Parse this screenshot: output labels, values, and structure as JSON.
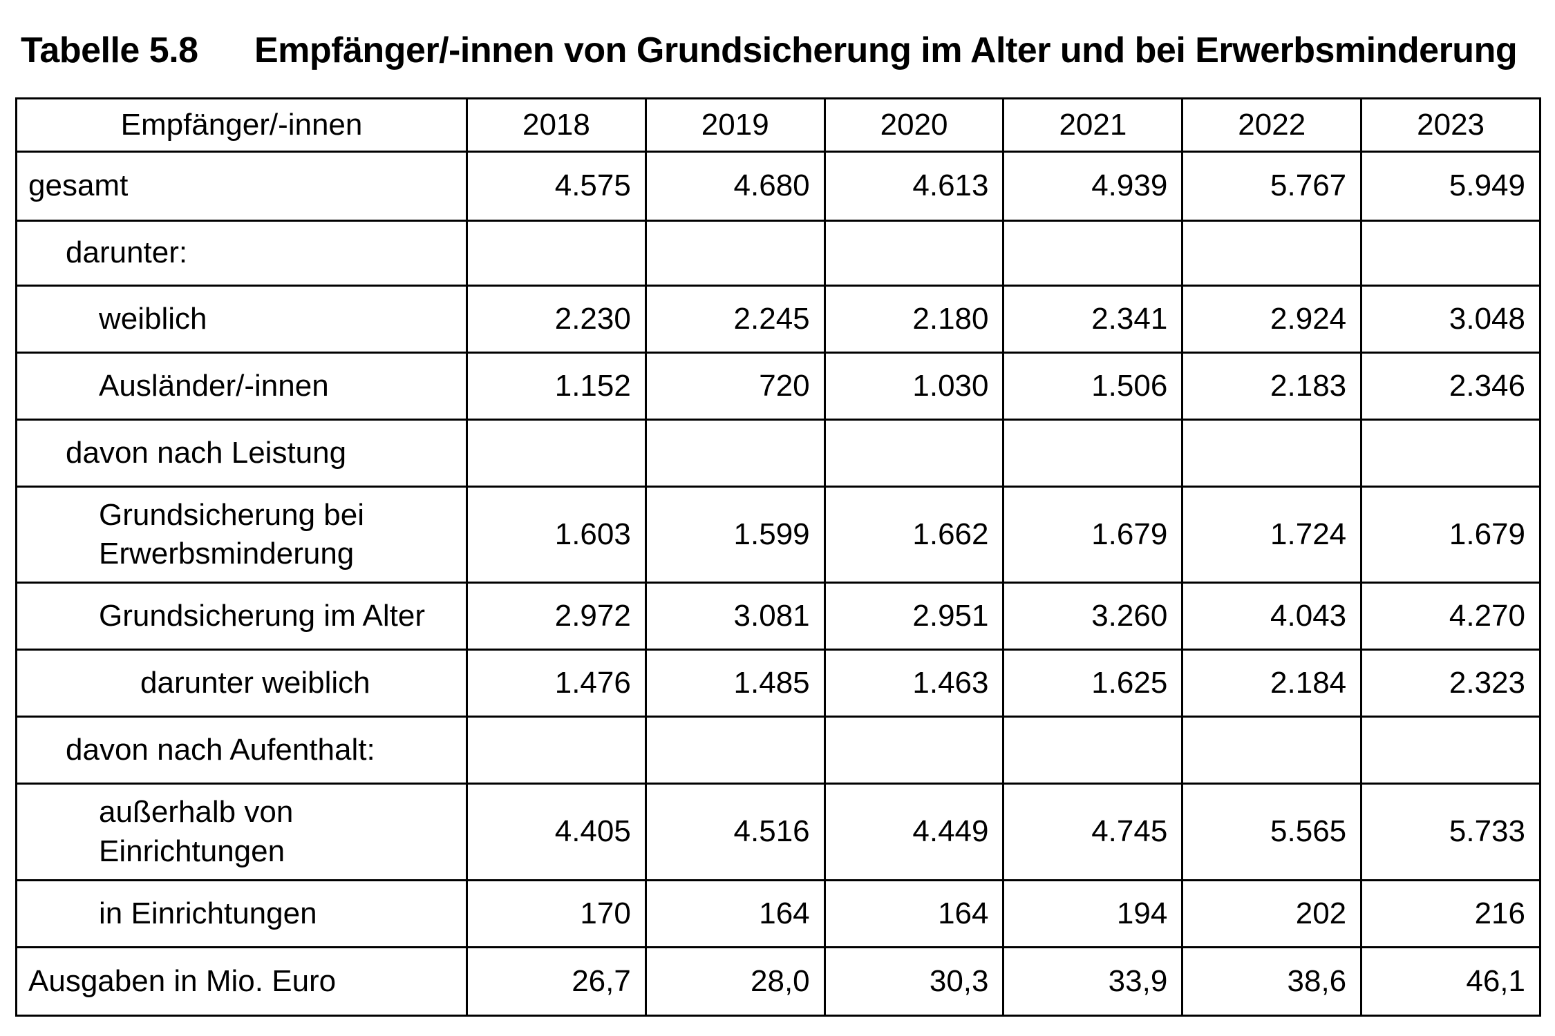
{
  "title": {
    "label": "Tabelle 5.8",
    "text": "Empfänger/-innen von Grundsicherung im Alter und bei Erwerbsminderung"
  },
  "table": {
    "header": {
      "label_col": "Empfänger/-innen",
      "years": [
        "2018",
        "2019",
        "2020",
        "2021",
        "2022",
        "2023"
      ]
    },
    "rows": [
      {
        "label": "gesamt",
        "indent": 0,
        "values": [
          "4.575",
          "4.680",
          "4.613",
          "4.939",
          "5.767",
          "5.949"
        ]
      },
      {
        "label": "darunter:",
        "indent": 1,
        "values": [
          "",
          "",
          "",
          "",
          "",
          ""
        ]
      },
      {
        "label": "weiblich",
        "indent": 2,
        "values": [
          "2.230",
          "2.245",
          "2.180",
          "2.341",
          "2.924",
          "3.048"
        ]
      },
      {
        "label": "Ausländer/-innen",
        "indent": 2,
        "values": [
          "1.152",
          "720",
          "1.030",
          "1.506",
          "2.183",
          "2.346"
        ]
      },
      {
        "label": "davon nach Leistung",
        "indent": 1,
        "values": [
          "",
          "",
          "",
          "",
          "",
          ""
        ]
      },
      {
        "label": "Grundsicherung bei Erwerbsminderung",
        "indent": 2,
        "values": [
          "1.603",
          "1.599",
          "1.662",
          "1.679",
          "1.724",
          "1.679"
        ]
      },
      {
        "label": "Grundsicherung im Alter",
        "indent": 2,
        "values": [
          "2.972",
          "3.081",
          "2.951",
          "3.260",
          "4.043",
          "4.270"
        ]
      },
      {
        "label": "darunter weiblich",
        "indent": 3,
        "values": [
          "1.476",
          "1.485",
          "1.463",
          "1.625",
          "2.184",
          "2.323"
        ]
      },
      {
        "label": "davon nach Aufenthalt:",
        "indent": 1,
        "values": [
          "",
          "",
          "",
          "",
          "",
          ""
        ]
      },
      {
        "label": "außerhalb von Einrichtungen",
        "indent": 2,
        "values": [
          "4.405",
          "4.516",
          "4.449",
          "4.745",
          "5.565",
          "5.733"
        ]
      },
      {
        "label": "in Einrichtungen",
        "indent": 2,
        "values": [
          "170",
          "164",
          "164",
          "194",
          "202",
          "216"
        ]
      },
      {
        "label": "Ausgaben in Mio. Euro",
        "indent": 0,
        "values": [
          "26,7",
          "28,0",
          "30,3",
          "33,9",
          "38,6",
          "46,1"
        ]
      }
    ]
  }
}
